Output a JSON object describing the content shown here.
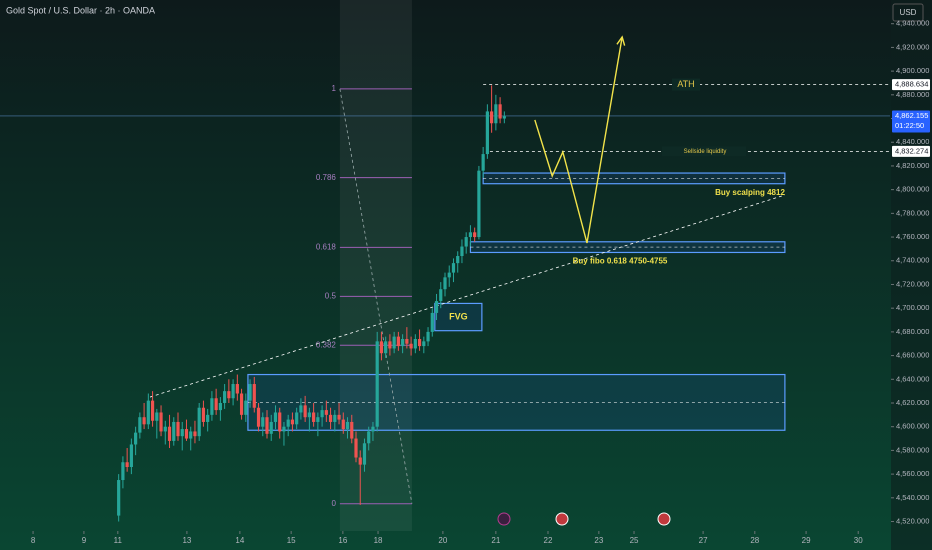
{
  "chart_data": {
    "type": "candlestick",
    "title": "Gold Spot / U.S. Dollar · 2h · OANDA",
    "currency": "USD",
    "up_color": "#26a69a",
    "down_color": "#ef5350",
    "xlim": [
      0,
      210
    ],
    "ylim": [
      4512,
      4960
    ],
    "xticks": [
      {
        "value": 7.8,
        "label": "8"
      },
      {
        "value": 19.8,
        "label": "9"
      },
      {
        "value": 27.8,
        "label": "11"
      },
      {
        "value": 44.1,
        "label": "13"
      },
      {
        "value": 56.6,
        "label": "14"
      },
      {
        "value": 68.7,
        "label": "15"
      },
      {
        "value": 80.9,
        "label": "16"
      },
      {
        "value": 89.2,
        "label": "18"
      },
      {
        "value": 104.5,
        "label": "20"
      },
      {
        "value": 117,
        "label": "21"
      },
      {
        "value": 129.3,
        "label": "22"
      },
      {
        "value": 141.3,
        "label": "23"
      },
      {
        "value": 149.6,
        "label": "25"
      },
      {
        "value": 165.9,
        "label": "27"
      },
      {
        "value": 178.1,
        "label": "28"
      },
      {
        "value": 190.2,
        "label": "29"
      },
      {
        "value": 202.5,
        "label": "30"
      }
    ],
    "yticks": [
      {
        "value": 4520,
        "label": "4,520.000"
      },
      {
        "value": 4540,
        "label": "4,540.000"
      },
      {
        "value": 4560,
        "label": "4,560.000"
      },
      {
        "value": 4580,
        "label": "4,580.000"
      },
      {
        "value": 4600,
        "label": "4,600.000"
      },
      {
        "value": 4620,
        "label": "4,620.000"
      },
      {
        "value": 4640,
        "label": "4,640.000"
      },
      {
        "value": 4660,
        "label": "4,660.000"
      },
      {
        "value": 4680,
        "label": "4,680.000"
      },
      {
        "value": 4700,
        "label": "4,700.000"
      },
      {
        "value": 4720,
        "label": "4,720.000"
      },
      {
        "value": 4740,
        "label": "4,740.000"
      },
      {
        "value": 4760,
        "label": "4,760.000"
      },
      {
        "value": 4780,
        "label": "4,780.000"
      },
      {
        "value": 4800,
        "label": "4,800.000"
      },
      {
        "value": 4820,
        "label": "4,820.000"
      },
      {
        "value": 4840,
        "label": "4,840.000"
      },
      {
        "value": 4860,
        "label": "4,860.000"
      },
      {
        "value": 4880,
        "label": "4,880.000"
      },
      {
        "value": 4900,
        "label": "4,900.000"
      },
      {
        "value": 4920,
        "label": "4,920.000"
      },
      {
        "value": 4940,
        "label": "4,940.000"
      }
    ],
    "x": [
      28,
      29,
      30,
      31,
      32,
      33,
      34,
      35,
      36,
      37,
      38,
      39,
      40,
      41,
      42,
      43,
      44,
      45,
      46,
      47,
      48,
      49,
      50,
      51,
      52,
      53,
      54,
      55,
      56,
      57,
      58,
      59,
      60,
      61,
      62,
      63,
      64,
      65,
      66,
      67,
      68,
      69,
      70,
      71,
      72,
      73,
      74,
      75,
      76,
      77,
      78,
      79,
      80,
      81,
      82,
      83,
      84,
      85,
      86,
      87,
      88,
      89,
      90,
      91,
      92,
      93,
      94,
      95,
      96,
      97,
      98,
      99,
      100,
      101,
      102,
      103,
      104,
      105,
      106,
      107,
      108,
      109,
      110,
      111,
      112,
      113,
      114,
      115,
      116,
      117,
      118,
      119
    ],
    "open": [
      4525,
      4555,
      4570,
      4566,
      4585,
      4595,
      4608,
      4602,
      4622,
      4605,
      4612,
      4596,
      4600,
      4588,
      4604,
      4592,
      4598,
      4590,
      4596,
      4592,
      4616,
      4604,
      4610,
      4624,
      4614,
      4620,
      4630,
      4624,
      4636,
      4628,
      4610,
      4622,
      4636,
      4616,
      4600,
      4608,
      4594,
      4604,
      4612,
      4596,
      4600,
      4606,
      4602,
      4612,
      4618,
      4608,
      4612,
      4604,
      4608,
      4614,
      4610,
      4604,
      4610,
      4606,
      4598,
      4604,
      4590,
      4574,
      4568,
      4586,
      4596,
      4600,
      4672,
      4662,
      4672,
      4666,
      4676,
      4668,
      4674,
      4670,
      4666,
      4674,
      4668,
      4672,
      4680,
      4696,
      4706,
      4716,
      4726,
      4730,
      4738,
      4744,
      4752,
      4760,
      4764,
      4760,
      4816,
      4830,
      4866,
      4856,
      4872,
      4860
    ],
    "high": [
      4560,
      4575,
      4582,
      4590,
      4600,
      4612,
      4620,
      4628,
      4630,
      4615,
      4618,
      4605,
      4610,
      4608,
      4612,
      4604,
      4606,
      4600,
      4605,
      4620,
      4622,
      4615,
      4630,
      4632,
      4625,
      4636,
      4640,
      4640,
      4644,
      4632,
      4628,
      4640,
      4642,
      4620,
      4612,
      4614,
      4610,
      4618,
      4616,
      4604,
      4610,
      4612,
      4616,
      4624,
      4626,
      4616,
      4620,
      4612,
      4618,
      4622,
      4616,
      4614,
      4620,
      4612,
      4608,
      4610,
      4596,
      4580,
      4590,
      4600,
      4604,
      4680,
      4680,
      4676,
      4678,
      4680,
      4680,
      4678,
      4684,
      4676,
      4678,
      4682,
      4676,
      4684,
      4700,
      4712,
      4722,
      4730,
      4736,
      4742,
      4748,
      4758,
      4764,
      4770,
      4768,
      4820,
      4836,
      4872,
      4888,
      4880,
      4878,
      4866
    ],
    "low": [
      4520,
      4548,
      4562,
      4560,
      4576,
      4590,
      4598,
      4598,
      4600,
      4590,
      4592,
      4585,
      4582,
      4584,
      4588,
      4580,
      4588,
      4580,
      4586,
      4588,
      4600,
      4596,
      4605,
      4610,
      4605,
      4615,
      4620,
      4618,
      4622,
      4606,
      4604,
      4616,
      4612,
      4596,
      4592,
      4590,
      4588,
      4598,
      4590,
      4584,
      4592,
      4596,
      4598,
      4606,
      4604,
      4596,
      4600,
      4592,
      4600,
      4604,
      4598,
      4596,
      4602,
      4594,
      4590,
      4586,
      4570,
      4534,
      4562,
      4580,
      4588,
      4596,
      4656,
      4658,
      4660,
      4662,
      4664,
      4662,
      4666,
      4660,
      4662,
      4664,
      4662,
      4668,
      4676,
      4690,
      4700,
      4710,
      4718,
      4722,
      4730,
      4738,
      4746,
      4752,
      4756,
      4758,
      4810,
      4826,
      4848,
      4850,
      4856,
      4856
    ],
    "close": [
      4555,
      4570,
      4566,
      4585,
      4595,
      4608,
      4602,
      4622,
      4605,
      4612,
      4596,
      4600,
      4588,
      4604,
      4592,
      4598,
      4590,
      4596,
      4592,
      4616,
      4604,
      4610,
      4624,
      4614,
      4620,
      4630,
      4624,
      4636,
      4628,
      4610,
      4622,
      4636,
      4616,
      4600,
      4608,
      4594,
      4604,
      4612,
      4596,
      4600,
      4606,
      4602,
      4612,
      4618,
      4608,
      4612,
      4604,
      4608,
      4614,
      4610,
      4604,
      4610,
      4606,
      4598,
      4604,
      4590,
      4574,
      4568,
      4586,
      4596,
      4600,
      4672,
      4662,
      4672,
      4666,
      4676,
      4668,
      4674,
      4670,
      4666,
      4674,
      4668,
      4672,
      4680,
      4696,
      4706,
      4716,
      4726,
      4730,
      4738,
      4744,
      4752,
      4760,
      4764,
      4760,
      4816,
      4830,
      4866,
      4856,
      4872,
      4860,
      4862
    ],
    "price_labels": [
      {
        "value": 4888.634,
        "label": "4,888.634"
      },
      {
        "value": 4862.155,
        "label": "4,862.155",
        "countdown": "01:22:50"
      },
      {
        "value": 4832.274,
        "label": "4,832.274"
      }
    ],
    "fib": {
      "levels": [
        1,
        0.786,
        0.618,
        0.5,
        0.382,
        0
      ],
      "price_0": 4535,
      "price_1": 4885,
      "x0": 80.2,
      "x1": 97.2
    },
    "lines": [
      {
        "label": "ATH",
        "value": 4888.634,
        "x0": 114
      },
      {
        "label": "Sellside liquidity",
        "value": 4832.274,
        "x0": 115.6
      }
    ],
    "zones": [
      {
        "label": "Buy scalping 4812",
        "top": 4814,
        "bottom": 4805,
        "x0": 114,
        "x1": 185.2
      },
      {
        "label": "Buy fibo 0.618 4750-4755",
        "top": 4756,
        "bottom": 4747,
        "x0": 111,
        "x1": 185.2
      },
      {
        "label": "FVG",
        "top": 4704,
        "bottom": 4681,
        "x0": 102.6,
        "x1": 113.7
      },
      {
        "top": 4644,
        "bottom": 4597,
        "x0": 58.5,
        "x1": 185.2
      }
    ],
    "trendline": {
      "x": [
        35.4,
        185.2
      ],
      "y": [
        4625,
        4795.5
      ]
    },
    "projection": {
      "x": [
        126.2,
        130.3,
        132.8,
        138.5,
        146.8
      ],
      "y": [
        4858.8,
        4811.5,
        4831.8,
        4755,
        4928.8
      ]
    }
  }
}
